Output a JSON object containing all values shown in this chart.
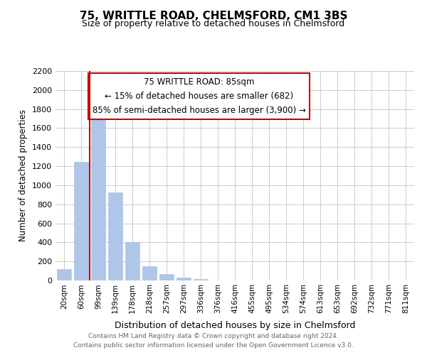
{
  "title_line1": "75, WRITTLE ROAD, CHELMSFORD, CM1 3BS",
  "title_line2": "Size of property relative to detached houses in Chelmsford",
  "xlabel": "Distribution of detached houses by size in Chelmsford",
  "ylabel": "Number of detached properties",
  "bar_labels": [
    "20sqm",
    "60sqm",
    "99sqm",
    "139sqm",
    "178sqm",
    "218sqm",
    "257sqm",
    "297sqm",
    "336sqm",
    "376sqm",
    "416sqm",
    "455sqm",
    "495sqm",
    "534sqm",
    "574sqm",
    "613sqm",
    "653sqm",
    "692sqm",
    "732sqm",
    "771sqm",
    "811sqm"
  ],
  "bar_heights": [
    120,
    1245,
    1700,
    925,
    400,
    150,
    65,
    30,
    15,
    0,
    0,
    0,
    0,
    0,
    0,
    0,
    0,
    0,
    0,
    0,
    0
  ],
  "bar_color": "#aec6e8",
  "bar_edge_color": "#aec6e8",
  "grid_color": "#cccccc",
  "vline_x": 1.5,
  "vline_color": "#cc0000",
  "annotation_title": "75 WRITTLE ROAD: 85sqm",
  "annotation_line1": "← 15% of detached houses are smaller (682)",
  "annotation_line2": "85% of semi-detached houses are larger (3,900) →",
  "annotation_box_color": "#ffffff",
  "annotation_box_edge": "#cc0000",
  "ylim": [
    0,
    2200
  ],
  "yticks": [
    0,
    200,
    400,
    600,
    800,
    1000,
    1200,
    1400,
    1600,
    1800,
    2000,
    2200
  ],
  "footnote_line1": "Contains HM Land Registry data © Crown copyright and database right 2024.",
  "footnote_line2": "Contains public sector information licensed under the Open Government Licence v3.0.",
  "background_color": "#ffffff",
  "plot_bg_color": "#ffffff"
}
